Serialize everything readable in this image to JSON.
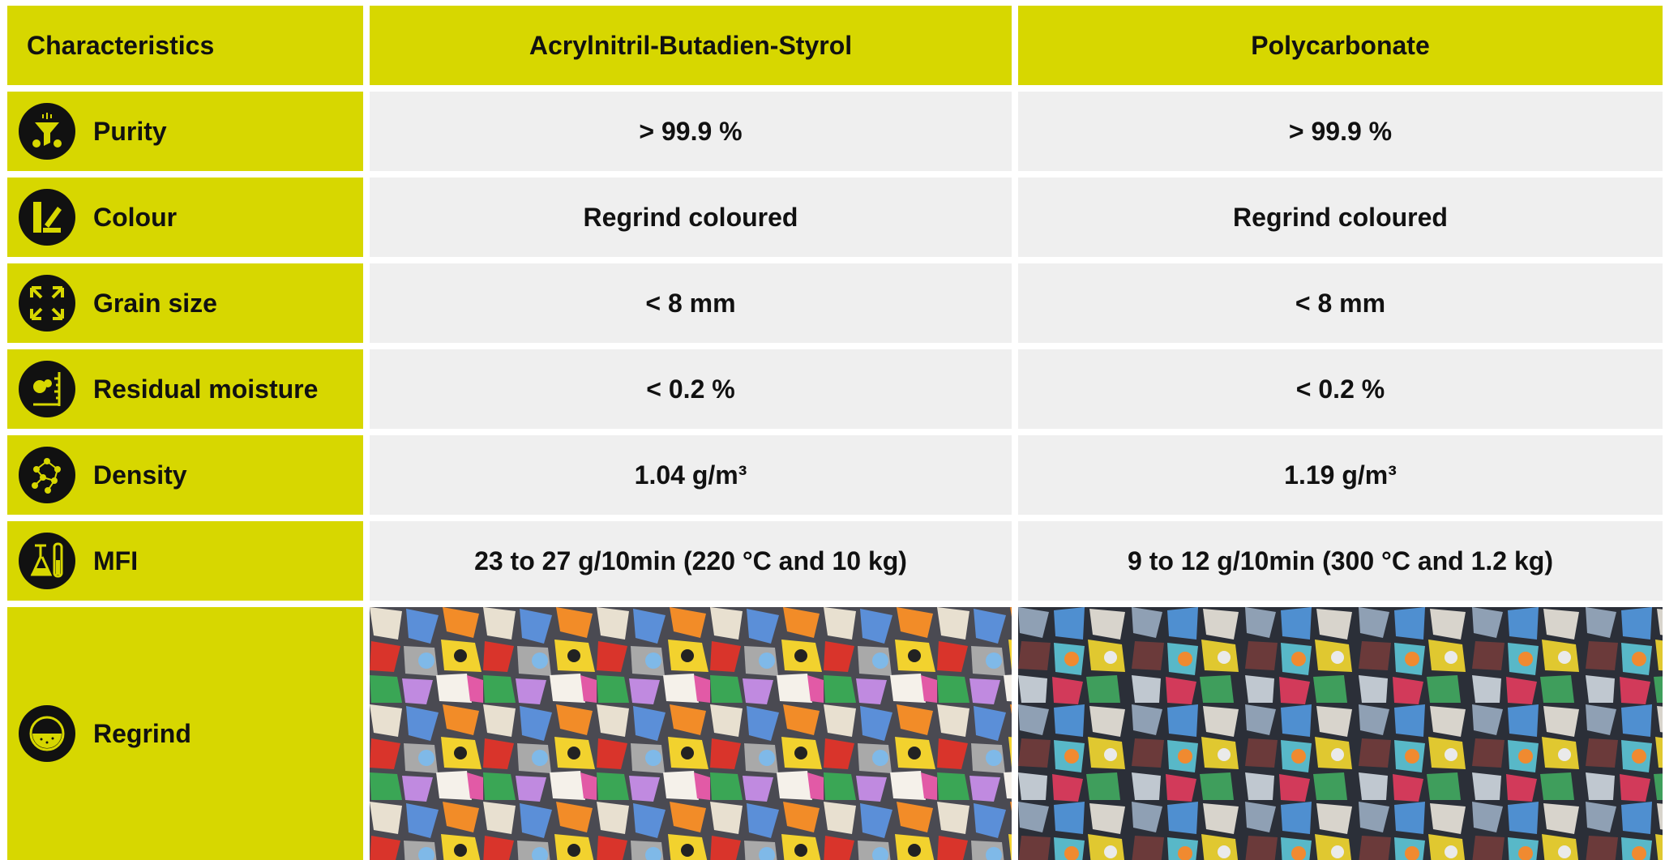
{
  "table": {
    "header": [
      "Characteristics",
      "Acrylnitril-Butadien-Styrol",
      "Polycarbonate"
    ],
    "rows": [
      {
        "label": "Purity",
        "values": [
          "> 99.9 %",
          "> 99.9 %"
        ]
      },
      {
        "label": "Colour",
        "values": [
          "Regrind coloured",
          "Regrind coloured"
        ]
      },
      {
        "label": "Grain size",
        "values": [
          "< 8 mm",
          "< 8 mm"
        ]
      },
      {
        "label": "Residual moisture",
        "values": [
          "< 0.2 %",
          "< 0.2 %"
        ]
      },
      {
        "label": "Density",
        "values": [
          "1.04 g/m³",
          "1.19 g/m³"
        ]
      },
      {
        "label": "MFI",
        "values": [
          "23 to 27 g/10min (220 °C and 10 kg)",
          "9 to 12 g/10min (300 °C and 1.2 kg)"
        ]
      },
      {
        "label": "Regrind"
      }
    ]
  }
}
